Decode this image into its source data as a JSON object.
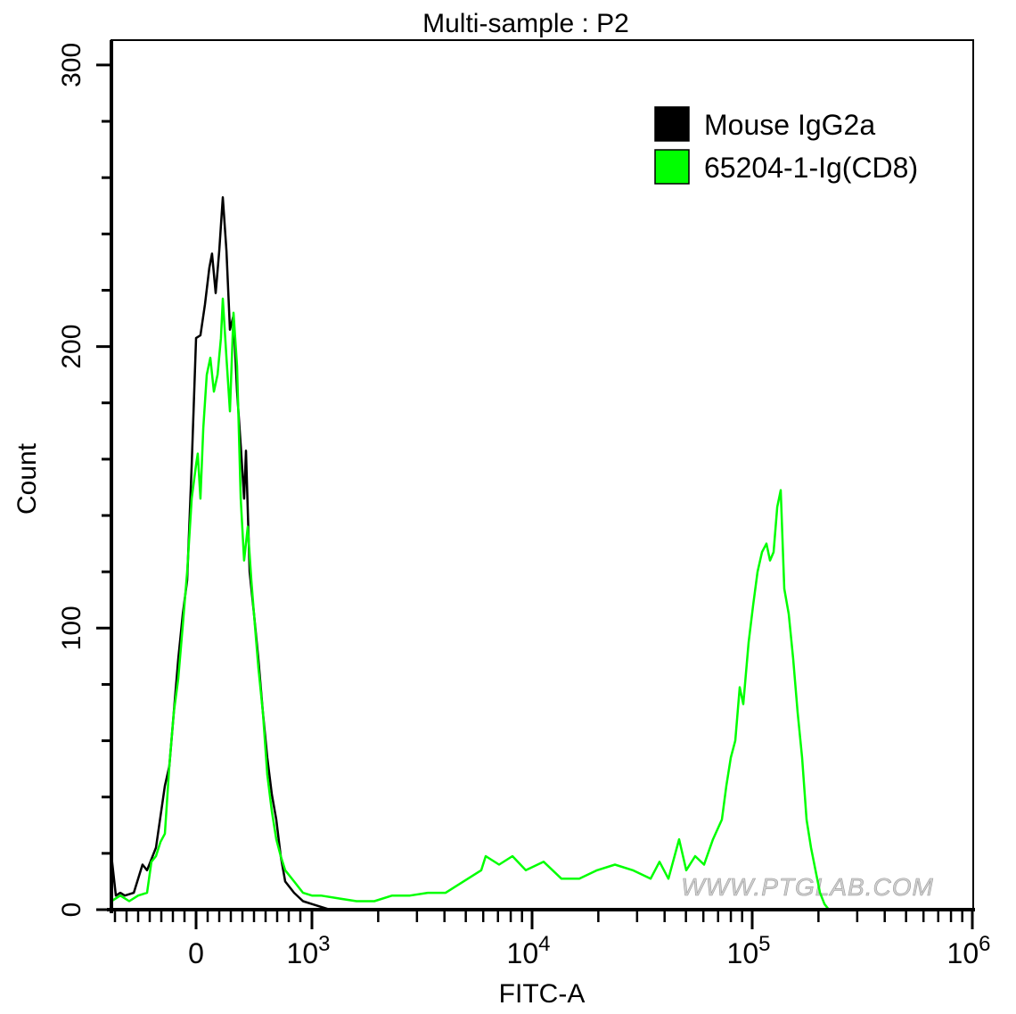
{
  "chart_data": {
    "type": "line",
    "title": "Multi-sample : P2",
    "xlabel": "FITC-A",
    "ylabel": "Count",
    "xscale": "biexponential",
    "xlim": [
      -730,
      1000000
    ],
    "ylim": [
      0,
      300
    ],
    "yticks": [
      0,
      100,
      200,
      300
    ],
    "xticks": [
      {
        "value": 0,
        "base": "0",
        "exp": ""
      },
      {
        "value": 1000,
        "base": "10",
        "exp": "3"
      },
      {
        "value": 10000,
        "base": "10",
        "exp": "4"
      },
      {
        "value": 100000,
        "base": "10",
        "exp": "5"
      },
      {
        "value": 1000000,
        "base": "10",
        "exp": "6"
      }
    ],
    "legend_position": "top-right",
    "watermark": "WWW.PTGLAB.COM",
    "series": [
      {
        "name": "Mouse IgG2a",
        "color": "#000000",
        "x": [
          -730,
          -692,
          -654,
          -615,
          -538,
          -462,
          -423,
          -346,
          -269,
          -231,
          -192,
          -154,
          -115,
          -77,
          -38,
          0,
          38,
          77,
          115,
          138,
          169,
          200,
          231,
          262,
          292,
          323,
          354,
          385,
          415,
          431,
          462,
          500,
          538,
          577,
          615,
          654,
          692,
          731,
          769,
          846,
          923,
          1000,
          1098,
          1205
        ],
        "y": [
          19,
          5,
          6,
          5,
          6,
          16,
          14,
          22,
          44,
          51,
          70,
          89,
          105,
          117,
          158,
          203,
          204,
          215,
          228,
          233,
          219,
          234,
          253,
          234,
          206,
          211,
          184,
          165,
          146,
          163,
          120,
          105,
          89,
          70,
          54,
          41,
          32,
          19,
          10,
          6,
          3,
          2,
          1,
          0
        ]
      },
      {
        "name": "65204-1-Ig(CD8)",
        "color": "#00ff00",
        "x": [
          -730,
          -654,
          -577,
          -500,
          -423,
          -385,
          -346,
          -308,
          -269,
          -231,
          -192,
          -154,
          -115,
          -77,
          -38,
          0,
          15,
          38,
          62,
          92,
          123,
          154,
          185,
          215,
          231,
          262,
          292,
          323,
          354,
          385,
          415,
          446,
          477,
          508,
          538,
          577,
          615,
          654,
          692,
          731,
          769,
          846,
          923,
          1000,
          1098,
          1323,
          1594,
          1920,
          2314,
          2788,
          3360,
          4049,
          4879,
          5877,
          6160,
          7083,
          8146,
          9369,
          11290,
          13600,
          16390,
          19750,
          23800,
          28670,
          34560,
          37920,
          41630,
          46560,
          50170,
          55070,
          60440,
          66340,
          72850,
          76320,
          79950,
          83770,
          87790,
          91100,
          96340,
          100900,
          105800,
          110800,
          116100,
          120500,
          125100,
          129900,
          134800,
          139900,
          146600,
          153600,
          160900,
          168600,
          176600,
          185100,
          193900,
          203200,
          212900,
          223000
        ],
        "y": [
          3,
          5,
          3,
          5,
          6,
          17,
          19,
          24,
          27,
          51,
          70,
          82,
          101,
          120,
          146,
          158,
          162,
          146,
          171,
          190,
          196,
          184,
          190,
          203,
          217,
          196,
          177,
          212,
          193,
          146,
          124,
          136,
          117,
          101,
          86,
          70,
          48,
          35,
          25,
          19,
          14,
          10,
          6,
          5,
          5,
          4,
          3,
          3,
          5,
          5,
          6,
          6,
          10,
          14,
          19,
          16,
          19,
          14,
          17,
          11,
          11,
          14,
          16,
          14,
          11,
          17,
          11,
          25,
          14,
          19,
          16,
          25,
          32,
          44,
          54,
          60,
          79,
          73,
          95,
          108,
          120,
          127,
          130,
          124,
          127,
          143,
          149,
          114,
          105,
          89,
          70,
          54,
          32,
          22,
          14,
          6,
          2,
          0
        ]
      }
    ]
  }
}
